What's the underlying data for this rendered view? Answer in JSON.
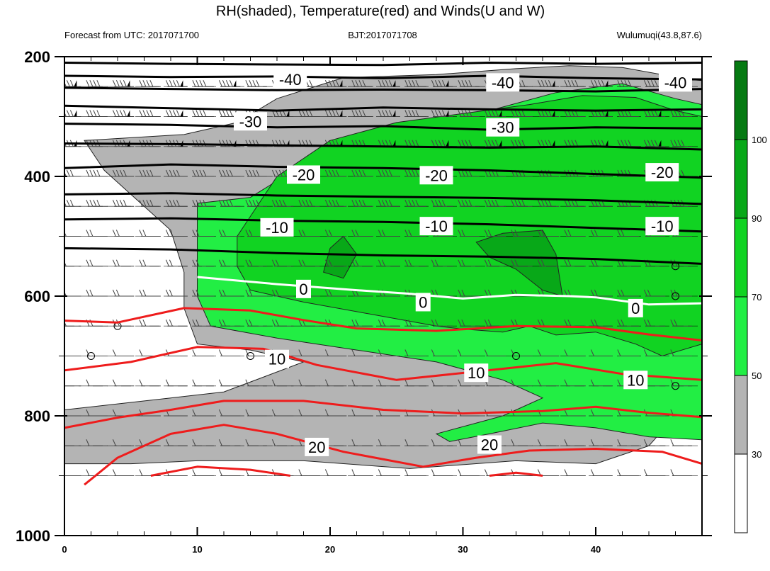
{
  "chart_data": {
    "type": "heatmap",
    "title": "RH(shaded), Temperature(red) and Winds(U and W)",
    "subtitle_left": "Forecast from UTC: 2017071700",
    "subtitle_center": "BJT:2017071708",
    "subtitle_right": "Wulumuqi(43.8,87.6)",
    "xlim": [
      0,
      48
    ],
    "ylim": [
      1000,
      200
    ],
    "y_scale": "pressure (inverted)",
    "x_ticks": [
      0,
      10,
      20,
      30,
      40
    ],
    "y_ticks": [
      200,
      400,
      600,
      800,
      1000
    ],
    "grid": true,
    "colorbar": {
      "placement": "right",
      "ticks": [
        30,
        50,
        70,
        90,
        100
      ],
      "levels": [
        {
          "min": 0,
          "max": 30,
          "color": "#ffffff"
        },
        {
          "min": 30,
          "max": 50,
          "color": "#b4b4b4"
        },
        {
          "min": 50,
          "max": 70,
          "color": "#22ee44"
        },
        {
          "min": 70,
          "max": 90,
          "color": "#11d322"
        },
        {
          "min": 90,
          "max": 100,
          "color": "#08a818"
        },
        {
          "min": 100,
          "max": 110,
          "color": "#067a12"
        }
      ]
    },
    "rh_regions": [
      {
        "level": 30,
        "color": "#b4b4b4",
        "points": [
          [
            1.5,
            340
          ],
          [
            9,
            330
          ],
          [
            13,
            310
          ],
          [
            16,
            270
          ],
          [
            21,
            235
          ],
          [
            28,
            230
          ],
          [
            34,
            220
          ],
          [
            38,
            215
          ],
          [
            42,
            218
          ],
          [
            47,
            238
          ],
          [
            48,
            240
          ],
          [
            48,
            750
          ],
          [
            46,
            800
          ],
          [
            44,
            850
          ],
          [
            40,
            880
          ],
          [
            34,
            875
          ],
          [
            26,
            888
          ],
          [
            18,
            875
          ],
          [
            10,
            875
          ],
          [
            5,
            880
          ],
          [
            0,
            880
          ],
          [
            0,
            790
          ],
          [
            4,
            780
          ],
          [
            8,
            770
          ],
          [
            12,
            760
          ],
          [
            15,
            735
          ],
          [
            18,
            710
          ],
          [
            14,
            690
          ],
          [
            10,
            680
          ],
          [
            9,
            620
          ],
          [
            9,
            560
          ],
          [
            8,
            490
          ],
          [
            5,
            430
          ],
          [
            3,
            390
          ],
          [
            1.5,
            340
          ]
        ]
      },
      {
        "level": 50,
        "color": "#22ee44",
        "points": [
          [
            10,
            570
          ],
          [
            10,
            445
          ],
          [
            14,
            435
          ],
          [
            18,
            380
          ],
          [
            22,
            350
          ],
          [
            26,
            315
          ],
          [
            32,
            290
          ],
          [
            37,
            260
          ],
          [
            42,
            245
          ],
          [
            46,
            270
          ],
          [
            48,
            280
          ],
          [
            48,
            840
          ],
          [
            44,
            835
          ],
          [
            40,
            820
          ],
          [
            36,
            812
          ],
          [
            32,
            830
          ],
          [
            29,
            843
          ],
          [
            28,
            830
          ],
          [
            33,
            800
          ],
          [
            36,
            770
          ],
          [
            33,
            740
          ],
          [
            28,
            710
          ],
          [
            22,
            690
          ],
          [
            16,
            670
          ],
          [
            11,
            650
          ],
          [
            10,
            600
          ],
          [
            10,
            570
          ]
        ]
      },
      {
        "level": 70,
        "color": "#11d322",
        "points": [
          [
            13,
            500
          ],
          [
            16,
            400
          ],
          [
            20,
            340
          ],
          [
            25,
            310
          ],
          [
            30,
            295
          ],
          [
            35,
            280
          ],
          [
            39,
            265
          ],
          [
            43,
            268
          ],
          [
            46,
            290
          ],
          [
            48,
            300
          ],
          [
            48,
            680
          ],
          [
            45,
            700
          ],
          [
            43,
            680
          ],
          [
            40,
            660
          ],
          [
            37,
            665
          ],
          [
            35,
            650
          ],
          [
            33,
            660
          ],
          [
            30,
            655
          ],
          [
            28,
            650
          ],
          [
            23,
            630
          ],
          [
            18,
            610
          ],
          [
            14,
            590
          ],
          [
            13,
            550
          ],
          [
            13,
            500
          ]
        ]
      },
      {
        "level": 90,
        "color": "#08a818",
        "points": [
          [
            19.5,
            560
          ],
          [
            20,
            520
          ],
          [
            21,
            500
          ],
          [
            22,
            530
          ],
          [
            21,
            570
          ],
          [
            19.5,
            560
          ]
        ]
      },
      {
        "level": 90,
        "color": "#08a818",
        "points": [
          [
            31,
            510
          ],
          [
            33,
            495
          ],
          [
            36,
            490
          ],
          [
            37,
            530
          ],
          [
            37.5,
            600
          ],
          [
            36,
            590
          ],
          [
            34,
            555
          ],
          [
            32,
            535
          ],
          [
            31,
            510
          ]
        ]
      }
    ],
    "temperature_contours": [
      {
        "value": -40,
        "color": "#000000",
        "points": [
          [
            0,
            210
          ],
          [
            8,
            212
          ],
          [
            16,
            213
          ],
          [
            24,
            214
          ],
          [
            32,
            210
          ],
          [
            40,
            212
          ],
          [
            48,
            210
          ]
        ]
      },
      {
        "value": -40,
        "color": "#000000",
        "points": [
          [
            0,
            232
          ],
          [
            8,
            234
          ],
          [
            16,
            233
          ],
          [
            24,
            236
          ],
          [
            32,
            232
          ],
          [
            40,
            236
          ],
          [
            48,
            238
          ]
        ]
      },
      {
        "value": -40,
        "color": "#000000",
        "points": [
          [
            0,
            252
          ],
          [
            8,
            254
          ],
          [
            16,
            256
          ],
          [
            24,
            255
          ],
          [
            32,
            256
          ],
          [
            40,
            258
          ],
          [
            48,
            254
          ]
        ]
      },
      {
        "value": -30,
        "color": "#000000",
        "points": [
          [
            0,
            282
          ],
          [
            8,
            286
          ],
          [
            16,
            290
          ],
          [
            24,
            285
          ],
          [
            32,
            288
          ],
          [
            40,
            290
          ],
          [
            48,
            288
          ]
        ]
      },
      {
        "value": -30,
        "color": "#000000",
        "points": [
          [
            0,
            312
          ],
          [
            8,
            314
          ],
          [
            16,
            318
          ],
          [
            24,
            316
          ],
          [
            32,
            322
          ],
          [
            40,
            318
          ],
          [
            48,
            320
          ]
        ]
      },
      {
        "value": -30,
        "color": "#000000",
        "points": [
          [
            0,
            345
          ],
          [
            8,
            346
          ],
          [
            16,
            348
          ],
          [
            24,
            350
          ],
          [
            32,
            352
          ],
          [
            40,
            350
          ],
          [
            48,
            355
          ]
        ]
      },
      {
        "value": -20,
        "color": "#000000",
        "points": [
          [
            0,
            386
          ],
          [
            8,
            380
          ],
          [
            16,
            384
          ],
          [
            24,
            386
          ],
          [
            32,
            390
          ],
          [
            40,
            396
          ],
          [
            48,
            402
          ]
        ]
      },
      {
        "value": -20,
        "color": "#000000",
        "points": [
          [
            0,
            430
          ],
          [
            8,
            428
          ],
          [
            16,
            432
          ],
          [
            24,
            434
          ],
          [
            32,
            436
          ],
          [
            40,
            440
          ],
          [
            48,
            446
          ]
        ]
      },
      {
        "value": -10,
        "color": "#000000",
        "points": [
          [
            0,
            472
          ],
          [
            8,
            470
          ],
          [
            16,
            474
          ],
          [
            24,
            476
          ],
          [
            32,
            480
          ],
          [
            40,
            486
          ],
          [
            48,
            492
          ]
        ]
      },
      {
        "value": -10,
        "color": "#000000",
        "points": [
          [
            0,
            520
          ],
          [
            8,
            522
          ],
          [
            16,
            528
          ],
          [
            24,
            532
          ],
          [
            32,
            534
          ],
          [
            40,
            538
          ],
          [
            48,
            546
          ]
        ]
      },
      {
        "value": 0,
        "color": "#ffffff",
        "points": [
          [
            10,
            568
          ],
          [
            16,
            580
          ],
          [
            22,
            590
          ],
          [
            26,
            596
          ],
          [
            30,
            604
          ],
          [
            34,
            598
          ],
          [
            38,
            600
          ],
          [
            40,
            602
          ],
          [
            44,
            614
          ],
          [
            48,
            612
          ]
        ]
      },
      {
        "value": 10,
        "color": "#ee1c1c",
        "points": [
          [
            0,
            641
          ],
          [
            4,
            644
          ],
          [
            9,
            620
          ],
          [
            14,
            624
          ],
          [
            18,
            640
          ],
          [
            22,
            654
          ],
          [
            28,
            658
          ],
          [
            34,
            650
          ],
          [
            40,
            652
          ],
          [
            44,
            664
          ],
          [
            48,
            674
          ]
        ]
      },
      {
        "value": 10,
        "color": "#ee1c1c",
        "points": [
          [
            0,
            724
          ],
          [
            5,
            710
          ],
          [
            10,
            685
          ],
          [
            15,
            688
          ],
          [
            19,
            715
          ],
          [
            25,
            740
          ],
          [
            31,
            726
          ],
          [
            37,
            712
          ],
          [
            42,
            730
          ],
          [
            48,
            740
          ]
        ]
      },
      {
        "value": 20,
        "color": "#ee1c1c",
        "points": [
          [
            0,
            820
          ],
          [
            4,
            803
          ],
          [
            8,
            790
          ],
          [
            12,
            775
          ],
          [
            18,
            775
          ],
          [
            24,
            790
          ],
          [
            30,
            796
          ],
          [
            36,
            792
          ],
          [
            40,
            785
          ],
          [
            44,
            795
          ],
          [
            48,
            802
          ]
        ]
      },
      {
        "value": 20,
        "color": "#ee1c1c",
        "points": [
          [
            1.5,
            915
          ],
          [
            4,
            870
          ],
          [
            8,
            830
          ],
          [
            12,
            815
          ],
          [
            16,
            830
          ],
          [
            21,
            860
          ],
          [
            27,
            885
          ],
          [
            31,
            870
          ],
          [
            35,
            858
          ],
          [
            40,
            855
          ],
          [
            45,
            860
          ],
          [
            48,
            880
          ]
        ]
      },
      {
        "value": 20,
        "color": "#ee1c1c",
        "points": [
          [
            6.5,
            900
          ],
          [
            10,
            885
          ],
          [
            14,
            890
          ],
          [
            17,
            900
          ]
        ]
      },
      {
        "value": 20,
        "color": "#ee1c1c",
        "points": [
          [
            32,
            900
          ],
          [
            34,
            895
          ],
          [
            36,
            900
          ]
        ]
      }
    ],
    "contour_labels": [
      {
        "text": "-40",
        "x": 17,
        "y": 238
      },
      {
        "text": "-40",
        "x": 33,
        "y": 243
      },
      {
        "text": "-40",
        "x": 46,
        "y": 243
      },
      {
        "text": "-30",
        "x": 14,
        "y": 308
      },
      {
        "text": "-30",
        "x": 33,
        "y": 318
      },
      {
        "text": "-20",
        "x": 18,
        "y": 397
      },
      {
        "text": "-20",
        "x": 28,
        "y": 398
      },
      {
        "text": "-20",
        "x": 45,
        "y": 393
      },
      {
        "text": "-10",
        "x": 16,
        "y": 485
      },
      {
        "text": "-10",
        "x": 28,
        "y": 483
      },
      {
        "text": "-10",
        "x": 45,
        "y": 483
      },
      {
        "text": "0",
        "x": 18,
        "y": 588
      },
      {
        "text": "0",
        "x": 27,
        "y": 610
      },
      {
        "text": "0",
        "x": 43,
        "y": 620
      },
      {
        "text": "10",
        "x": 16,
        "y": 705
      },
      {
        "text": "10",
        "x": 31,
        "y": 728
      },
      {
        "text": "10",
        "x": 43,
        "y": 740
      },
      {
        "text": "20",
        "x": 19,
        "y": 852
      },
      {
        "text": "20",
        "x": 32,
        "y": 848
      }
    ],
    "wind_levels": [
      250,
      300,
      350,
      400,
      450,
      500,
      550,
      600,
      650,
      700,
      750,
      800,
      850,
      900
    ],
    "wind_x": [
      0.5,
      2.5,
      4.5,
      6.5,
      8.5,
      10.5,
      12.5,
      14.5,
      16.5,
      18.5,
      20.5,
      22.5,
      24.5,
      26.5,
      28.5,
      30.5,
      32.5,
      34.5,
      36.5,
      38.5,
      40.5,
      42.5,
      44.5,
      46.5
    ],
    "calm_points": [
      [
        4,
        650
      ],
      [
        2,
        700
      ],
      [
        14,
        700
      ],
      [
        34,
        700
      ],
      [
        46,
        750
      ],
      [
        46,
        550
      ],
      [
        46,
        600
      ]
    ]
  }
}
